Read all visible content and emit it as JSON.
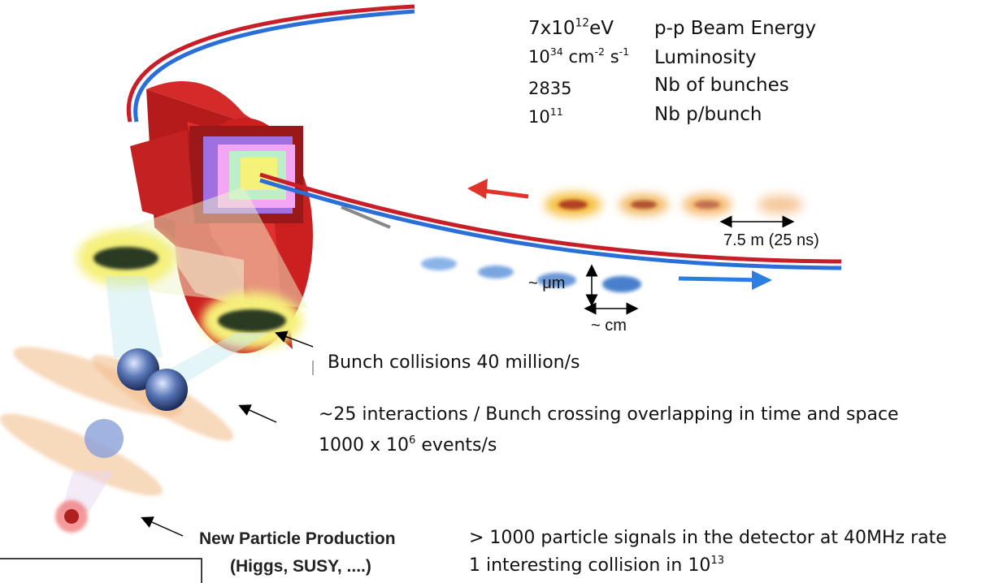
{
  "parameters": [
    {
      "value": [
        {
          "text": "7x10"
        },
        {
          "sup": "12"
        },
        {
          "text": "eV"
        }
      ],
      "label": "p-p Beam Energy"
    },
    {
      "value": [
        {
          "text": "10"
        },
        {
          "sup": "34"
        },
        {
          "text": " cm"
        },
        {
          "sup": "-2"
        },
        {
          "text": " s"
        },
        {
          "sup": "-1"
        }
      ],
      "label": "Luminosity"
    },
    {
      "value": [
        {
          "text": "2835"
        }
      ],
      "label": "Nb of bunches"
    },
    {
      "value": [
        {
          "text": "10"
        },
        {
          "sup": "11"
        }
      ],
      "label": "Nb p/bunch"
    }
  ],
  "annotations": {
    "spacing": "7.5 m  (25 ns)",
    "width": "~ μm",
    "length": "~ cm",
    "bunch_collisions": "Bunch collisions 40 million/s",
    "interactions": [
      {
        "text": "~25 interactions / Bunch crossing overlapping in time and space"
      }
    ],
    "events": [
      {
        "text": "1000 x 10"
      },
      {
        "sup": "6"
      },
      {
        "text": " events/s"
      }
    ],
    "production_title": "New Particle Production",
    "production_examples": "(Higgs, SUSY, ....)",
    "signals": "> 1000 particle signals in the detector at 40MHz rate",
    "interesting": [
      {
        "text": "1 interesting collision in 10"
      },
      {
        "sup": "13"
      }
    ]
  }
}
